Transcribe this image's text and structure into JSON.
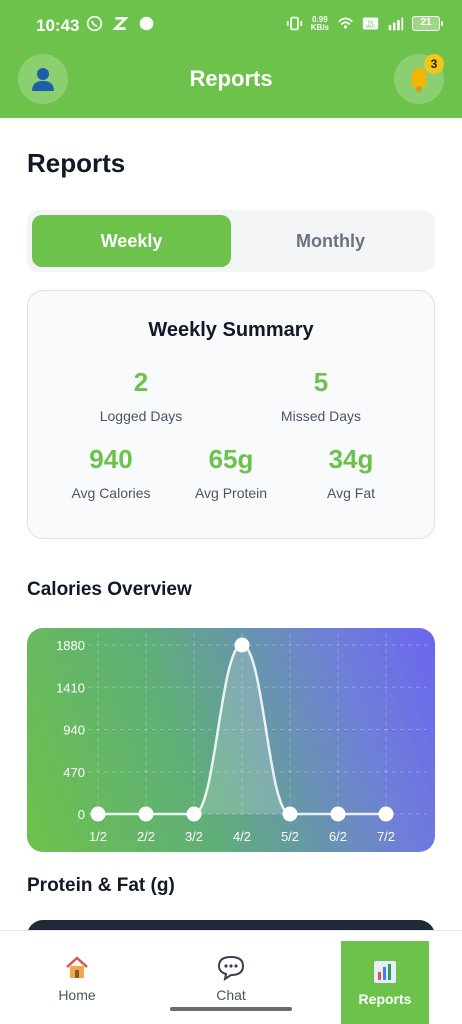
{
  "status_bar": {
    "time": "10:43",
    "left_icons": [
      "whatsapp-icon",
      "z-app-icon",
      "circle-icon"
    ],
    "net_speed_value": "0.99",
    "net_speed_unit": "KB/s",
    "battery": "21",
    "wifi_label": "Vo WiFi"
  },
  "header": {
    "title": "Reports",
    "notification_count": "3"
  },
  "page": {
    "heading": "Reports"
  },
  "period_toggle": {
    "weekly": "Weekly",
    "monthly": "Monthly",
    "selected": "Weekly"
  },
  "summary": {
    "title": "Weekly Summary",
    "logged_days_value": "2",
    "logged_days_label": "Logged Days",
    "missed_days_value": "5",
    "missed_days_label": "Missed Days",
    "avg_calories_value": "940",
    "avg_calories_label": "Avg Calories",
    "avg_protein_value": "65g",
    "avg_protein_label": "Avg Protein",
    "avg_fat_value": "34g",
    "avg_fat_label": "Avg Fat"
  },
  "sections": {
    "calories_overview": "Calories Overview",
    "protein_fat": "Protein & Fat (g)"
  },
  "chart_data": {
    "type": "line",
    "title": "Calories Overview",
    "categories": [
      "1/2",
      "2/2",
      "3/2",
      "4/2",
      "5/2",
      "6/2",
      "7/2"
    ],
    "values": [
      0,
      0,
      0,
      1880,
      0,
      0,
      0
    ],
    "y_ticks": [
      0,
      470,
      940,
      1410,
      1880
    ],
    "ylim": [
      0,
      1880
    ],
    "grid": true,
    "smooth": true,
    "filled": true
  },
  "bottom_nav": {
    "items": [
      {
        "label": "Home",
        "icon": "home-icon"
      },
      {
        "label": "Chat",
        "icon": "chat-icon"
      },
      {
        "label": "Reports",
        "icon": "bar-chart-icon"
      }
    ],
    "active": "Reports"
  },
  "colors": {
    "primary": "#6cc24a",
    "text_dark": "#111827",
    "text_muted": "#6b7280"
  }
}
